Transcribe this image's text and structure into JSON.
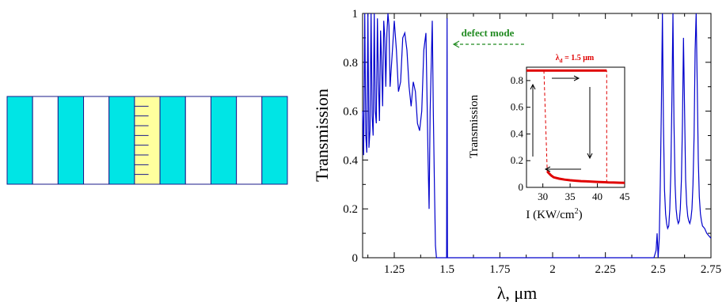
{
  "structure": {
    "layers": [
      "cyan",
      "white",
      "cyan",
      "white",
      "cyan",
      "defect",
      "cyan",
      "white",
      "cyan",
      "white",
      "cyan"
    ],
    "colors": {
      "cyan": "#00e5e5",
      "white": "#ffffff",
      "defect": "#ffff9e",
      "border": "#1a1a8a"
    }
  },
  "chart_data": [
    {
      "type": "line",
      "title": "",
      "xlabel": "λ, μm",
      "ylabel": "Transmission",
      "xlim": [
        1.1,
        2.75
      ],
      "ylim": [
        0,
        1
      ],
      "xticks": [
        1.25,
        1.5,
        1.75,
        2,
        2.25,
        2.5,
        2.75
      ],
      "xtick_labels": [
        "1.25",
        "1.5",
        "1.75",
        "2",
        "2.25",
        "2.5",
        "2.75"
      ],
      "yticks": [
        0,
        0.2,
        0.4,
        0.6,
        0.8,
        1
      ],
      "ytick_labels": [
        "0",
        "0.2",
        "0.4",
        "0.6",
        "0.8",
        "1"
      ],
      "grid": false,
      "color": "#0000cc",
      "series": [
        {
          "x": [
            1.1,
            1.105,
            1.11,
            1.115,
            1.12,
            1.125,
            1.13,
            1.135,
            1.14,
            1.145,
            1.15,
            1.155,
            1.16,
            1.165,
            1.17,
            1.175,
            1.18,
            1.185,
            1.19,
            1.195,
            1.2,
            1.205,
            1.21,
            1.215,
            1.22,
            1.225,
            1.23,
            1.24,
            1.25,
            1.26,
            1.27,
            1.28,
            1.29,
            1.3,
            1.31,
            1.32,
            1.33,
            1.34,
            1.35,
            1.36,
            1.37,
            1.38,
            1.39,
            1.4,
            1.41,
            1.415,
            1.42,
            1.43,
            1.435,
            1.44,
            1.445,
            1.45,
            1.455,
            1.46,
            1.47,
            1.48,
            1.49,
            1.498,
            1.499,
            1.5,
            1.501,
            1.502,
            1.51,
            1.55,
            1.6,
            1.7,
            1.8,
            1.9,
            2,
            2.1,
            2.2,
            2.3,
            2.4,
            2.45,
            2.48,
            2.49,
            2.495,
            2.5,
            2.505,
            2.51,
            2.515,
            2.52,
            2.525,
            2.53,
            2.535,
            2.54,
            2.545,
            2.55,
            2.555,
            2.56,
            2.565,
            2.57,
            2.575,
            2.58,
            2.585,
            2.59,
            2.595,
            2.6,
            2.605,
            2.61,
            2.615,
            2.62,
            2.625,
            2.63,
            2.635,
            2.64,
            2.645,
            2.65,
            2.655,
            2.66,
            2.665,
            2.67,
            2.675,
            2.68,
            2.685,
            2.69,
            2.695,
            2.7,
            2.705,
            2.71,
            2.72,
            2.73,
            2.74,
            2.75
          ],
          "y": [
            0.6,
            0.42,
            1,
            0.5,
            0.43,
            1,
            0.45,
            0.52,
            1,
            0.58,
            0.5,
            1,
            0.6,
            0.55,
            0.98,
            0.72,
            0.56,
            0.93,
            0.8,
            0.62,
            0.97,
            0.9,
            0.7,
            0.92,
            1,
            0.95,
            0.7,
            0.83,
            0.97,
            0.85,
            0.68,
            0.72,
            0.9,
            0.92,
            0.85,
            0.7,
            0.62,
            0.72,
            0.68,
            0.55,
            0.52,
            0.6,
            0.85,
            0.92,
            0.4,
            0.2,
            0.6,
            0.97,
            0.6,
            0.3,
            0.05,
            0,
            0,
            0,
            0,
            0,
            0,
            0,
            0.5,
            0.98,
            0.4,
            0,
            0,
            0,
            0,
            0,
            0,
            0,
            0,
            0,
            0,
            0,
            0,
            0,
            0,
            0.03,
            0.1,
            0,
            0.08,
            0.3,
            0.6,
            1,
            0.55,
            0.28,
            0.18,
            0.14,
            0.12,
            0.13,
            0.2,
            0.35,
            0.65,
            1,
            0.55,
            0.3,
            0.2,
            0.16,
            0.14,
            0.15,
            0.2,
            0.32,
            0.55,
            0.9,
            0.6,
            0.32,
            0.22,
            0.17,
            0.15,
            0.14,
            0.16,
            0.2,
            0.3,
            0.5,
            0.85,
            1,
            0.7,
            0.4,
            0.25,
            0.18,
            0.15,
            0.13,
            0.12,
            0.1,
            0.09,
            0.08
          ]
        }
      ],
      "annotations": [
        {
          "text": "defect mode",
          "color": "#228b22"
        }
      ]
    },
    {
      "type": "line",
      "title": "",
      "xlabel": "I (KW/cm",
      "xlabel_sup": "2",
      "xlabel_close": ")",
      "ylabel": "Transmission",
      "xlim": [
        27,
        45
      ],
      "ylim": [
        0,
        0.9
      ],
      "xticks": [
        30,
        35,
        40,
        45
      ],
      "xtick_labels": [
        "30",
        "35",
        "40",
        "45"
      ],
      "yticks": [
        0,
        0.2,
        0.4,
        0.6,
        0.8
      ],
      "ytick_labels": [
        "0",
        "0.2",
        "0.4",
        "0.6",
        "0.8"
      ],
      "color": "#e00000",
      "label_main": "λ",
      "label_sub": "d",
      "label_rest": " = 1.5 μm",
      "upper_branch": {
        "x": [
          27,
          41.7
        ],
        "y": [
          0.875,
          0.875
        ]
      },
      "lower_branch": {
        "x": [
          30.8,
          31,
          31.5,
          32,
          33,
          34,
          35,
          36,
          37,
          38,
          39,
          40,
          41,
          42,
          43,
          44,
          45
        ],
        "y": [
          0.12,
          0.11,
          0.09,
          0.075,
          0.065,
          0.058,
          0.053,
          0.05,
          0.047,
          0.045,
          0.043,
          0.041,
          0.039,
          0.037,
          0.036,
          0.035,
          0.034
        ]
      },
      "dashed_up": {
        "x": [
          41.7,
          41.7
        ],
        "y": [
          0.034,
          0.875
        ]
      },
      "dashed_down": {
        "x": [
          30.2,
          30.8
        ],
        "y": [
          0.875,
          0.12
        ]
      }
    }
  ]
}
